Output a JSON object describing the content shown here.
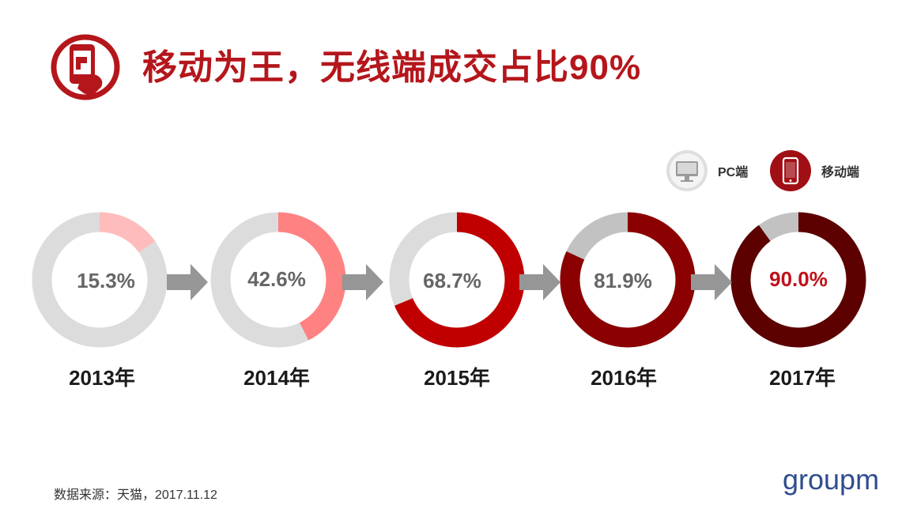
{
  "header": {
    "icon": "mobile-hand-icon",
    "title": "移动为王，无线端成交占比90%"
  },
  "legend": {
    "pc": {
      "label": "PC端",
      "icon": "monitor-icon",
      "color": "#dcdcdc"
    },
    "mobile": {
      "label": "移动端",
      "icon": "phone-icon",
      "color": "#a00f14"
    }
  },
  "chart_data": {
    "type": "donut",
    "title": "移动为王，无线端成交占比90%",
    "series_names": [
      "PC端",
      "移动端"
    ],
    "categories": [
      "2013年",
      "2014年",
      "2015年",
      "2016年",
      "2017年"
    ],
    "mobile_share": [
      15.3,
      42.6,
      68.7,
      81.9,
      90.0
    ],
    "labels": [
      "15.3%",
      "42.6%",
      "68.7%",
      "81.9%",
      "90.0%"
    ],
    "mobile_colors": [
      "#ffbcbc",
      "#ff8282",
      "#c00000",
      "#8b0000",
      "#5c0000"
    ],
    "pc_colors": [
      "#dcdcdc",
      "#dcdcdc",
      "#dcdcdc",
      "#c2c2c2",
      "#c2c2c2"
    ],
    "label_colors": [
      "#666666",
      "#666666",
      "#666666",
      "#666666",
      "#c0101a"
    ]
  },
  "footer": {
    "source": "数据来源：天猫，2017.11.12",
    "logo": "groupm"
  }
}
